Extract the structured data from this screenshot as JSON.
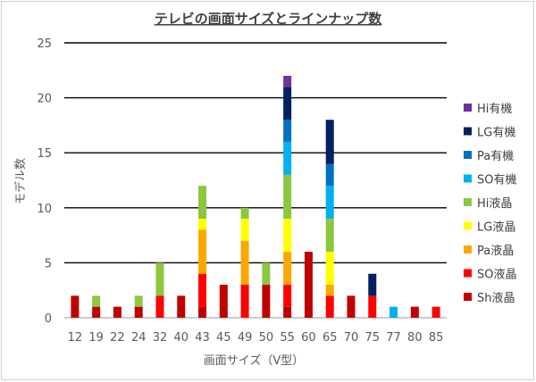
{
  "chart_data": {
    "type": "bar",
    "stacked": true,
    "title": "テレビの画面サイズとラインナップ数",
    "xlabel": "画面サイズ（V型）",
    "ylabel": "モデル数",
    "ylim": [
      0,
      25
    ],
    "yticks": [
      0,
      5,
      10,
      15,
      20,
      25
    ],
    "grid": true,
    "legend_position": "right",
    "categories": [
      "12",
      "19",
      "22",
      "24",
      "32",
      "40",
      "43",
      "45",
      "49",
      "50",
      "55",
      "60",
      "65",
      "70",
      "75",
      "77",
      "80",
      "85"
    ],
    "series": [
      {
        "name": "Sh液晶",
        "color": "#c00000",
        "values": [
          2,
          1,
          1,
          1,
          0,
          2,
          1,
          3,
          0,
          3,
          1,
          6,
          0,
          2,
          0,
          0,
          1,
          0
        ]
      },
      {
        "name": "SO液晶",
        "color": "#ff0000",
        "values": [
          0,
          0,
          0,
          0,
          2,
          0,
          3,
          0,
          3,
          0,
          2,
          0,
          2,
          0,
          2,
          0,
          0,
          1
        ]
      },
      {
        "name": "Pa液晶",
        "color": "#f9a800",
        "values": [
          0,
          0,
          0,
          0,
          0,
          0,
          4,
          0,
          4,
          0,
          3,
          0,
          1,
          0,
          0,
          0,
          0,
          0
        ]
      },
      {
        "name": "LG液晶",
        "color": "#ffff00",
        "values": [
          0,
          0,
          0,
          0,
          0,
          0,
          1,
          0,
          2,
          0,
          3,
          0,
          3,
          0,
          0,
          0,
          0,
          0
        ]
      },
      {
        "name": "Hi液晶",
        "color": "#8dc63f",
        "values": [
          0,
          1,
          0,
          1,
          3,
          0,
          3,
          0,
          1,
          2,
          4,
          0,
          3,
          0,
          0,
          0,
          0,
          0
        ]
      },
      {
        "name": "SO有機",
        "color": "#00b0f0",
        "values": [
          0,
          0,
          0,
          0,
          0,
          0,
          0,
          0,
          0,
          0,
          3,
          0,
          3,
          0,
          0,
          1,
          0,
          0
        ]
      },
      {
        "name": "Pa有機",
        "color": "#0070c0",
        "values": [
          0,
          0,
          0,
          0,
          0,
          0,
          0,
          0,
          0,
          0,
          2,
          0,
          2,
          0,
          0,
          0,
          0,
          0
        ]
      },
      {
        "name": "LG有機",
        "color": "#002060",
        "values": [
          0,
          0,
          0,
          0,
          0,
          0,
          0,
          0,
          0,
          0,
          3,
          0,
          4,
          0,
          2,
          0,
          0,
          0
        ]
      },
      {
        "name": "Hi有機",
        "color": "#7030a0",
        "values": [
          0,
          0,
          0,
          0,
          0,
          0,
          0,
          0,
          0,
          0,
          1,
          0,
          0,
          0,
          0,
          0,
          0,
          0
        ]
      }
    ]
  }
}
